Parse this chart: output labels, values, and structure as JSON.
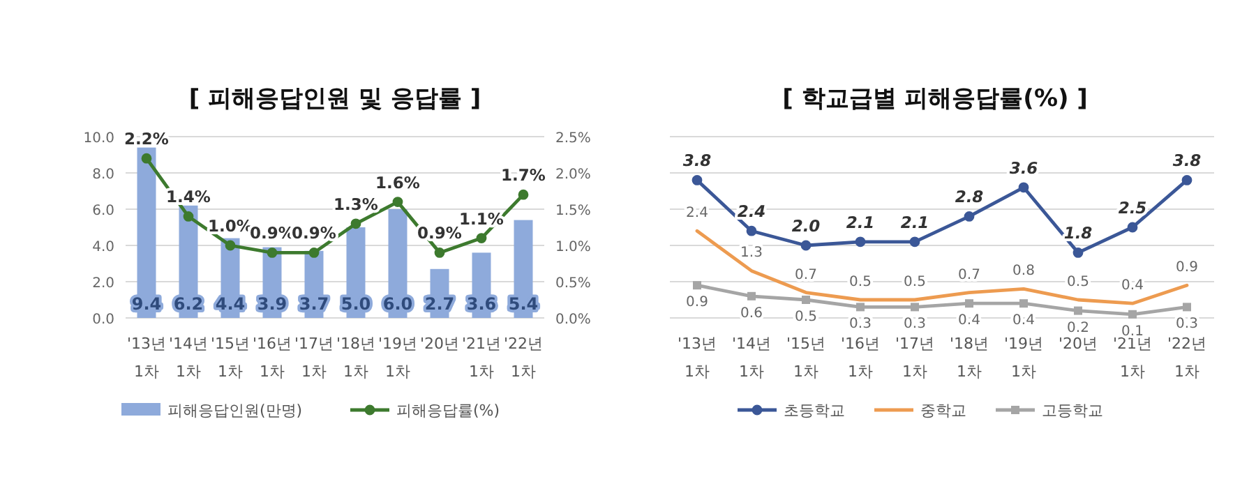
{
  "chart_data": [
    {
      "type": "bar",
      "title": "[ 피해응답인원 및 응답률 ]",
      "categories": [
        "'13년 1차",
        "'14년 1차",
        "'15년 1차",
        "'16년 1차",
        "'17년 1차",
        "'18년 1차",
        "'19년 1차",
        "'20년",
        "'21년 1차",
        "'22년 1차"
      ],
      "series": [
        {
          "name": "피해응답인원(만명)",
          "type": "bar",
          "color": "#8eaadb",
          "values": [
            9.4,
            6.2,
            4.4,
            3.9,
            3.7,
            5.0,
            6.0,
            2.7,
            3.6,
            5.4
          ],
          "value_labels": [
            "9.4",
            "6.2",
            "4.4",
            "3.9",
            "3.7",
            "5.0",
            "6.0",
            "2.7",
            "3.6",
            "5.4"
          ]
        },
        {
          "name": "피해응답률(%)",
          "type": "line",
          "axis": "y2",
          "color": "#3d7a2e",
          "marker": "circle",
          "values": [
            2.2,
            1.4,
            1.0,
            0.9,
            0.9,
            1.3,
            1.6,
            0.9,
            1.1,
            1.7
          ],
          "value_labels": [
            "2.2%",
            "1.4%",
            "1.0%",
            "0.9%",
            "0.9%",
            "1.3%",
            "1.6%",
            "0.9%",
            "1.1%",
            "1.7%"
          ]
        }
      ],
      "ylim": [
        0,
        10
      ],
      "yticks": [
        {
          "value": 0,
          "label": "0.0"
        },
        {
          "value": 2,
          "label": "2.0"
        },
        {
          "value": 4,
          "label": "4.0"
        },
        {
          "value": 6,
          "label": "6.0"
        },
        {
          "value": 8,
          "label": "8.0"
        },
        {
          "value": 10,
          "label": "10.0"
        }
      ],
      "y2lim": [
        0,
        2.5
      ],
      "y2ticks": [
        {
          "value": 0,
          "label": "0.0%"
        },
        {
          "value": 0.5,
          "label": "0.5%"
        },
        {
          "value": 1,
          "label": "1.0%"
        },
        {
          "value": 1.5,
          "label": "1.5%"
        },
        {
          "value": 2,
          "label": "2.0%"
        },
        {
          "value": 2.5,
          "label": "2.5%"
        }
      ],
      "grid": "y",
      "legend": "bottom"
    },
    {
      "type": "line",
      "title": "[ 학교급별 피해응답률(%) ]",
      "categories": [
        "'13년 1차",
        "'14년 1차",
        "'15년 1차",
        "'16년 1차",
        "'17년 1차",
        "'18년 1차",
        "'19년 1차",
        "'20년",
        "'21년 1차",
        "'22년 1차"
      ],
      "series": [
        {
          "name": "초등학교",
          "color": "#3b5797",
          "marker": "circle",
          "values": [
            3.8,
            2.4,
            2.0,
            2.1,
            2.1,
            2.8,
            3.6,
            1.8,
            2.5,
            3.8
          ],
          "value_labels": [
            "3.8",
            "2.4",
            "2.0",
            "2.1",
            "2.1",
            "2.8",
            "3.6",
            "1.8",
            "2.5",
            "3.8"
          ]
        },
        {
          "name": "중학교",
          "color": "#ed9b50",
          "marker": "none",
          "values": [
            2.4,
            1.3,
            0.7,
            0.5,
            0.5,
            0.7,
            0.8,
            0.5,
            0.4,
            0.9
          ],
          "value_labels": [
            "2.4",
            "1.3",
            "0.7",
            "0.5",
            "0.5",
            "0.7",
            "0.8",
            "0.5",
            "0.4",
            "0.9"
          ]
        },
        {
          "name": "고등학교",
          "color": "#a5a5a5",
          "marker": "square",
          "values": [
            0.9,
            0.6,
            0.5,
            0.3,
            0.3,
            0.4,
            0.4,
            0.2,
            0.1,
            0.3
          ],
          "value_labels": [
            "0.9",
            "0.6",
            "0.5",
            "0.3",
            "0.3",
            "0.4",
            "0.4",
            "0.2",
            "0.1",
            "0.3"
          ]
        }
      ],
      "ylim": [
        0,
        5
      ],
      "yticks": [
        {
          "value": 0,
          "label": null
        },
        {
          "value": 1,
          "label": null
        },
        {
          "value": 2,
          "label": null
        },
        {
          "value": 3,
          "label": null
        },
        {
          "value": 4,
          "label": null
        },
        {
          "value": 5,
          "label": null
        }
      ],
      "tick_labels": "x",
      "grid": "y",
      "legend": "bottom"
    }
  ]
}
